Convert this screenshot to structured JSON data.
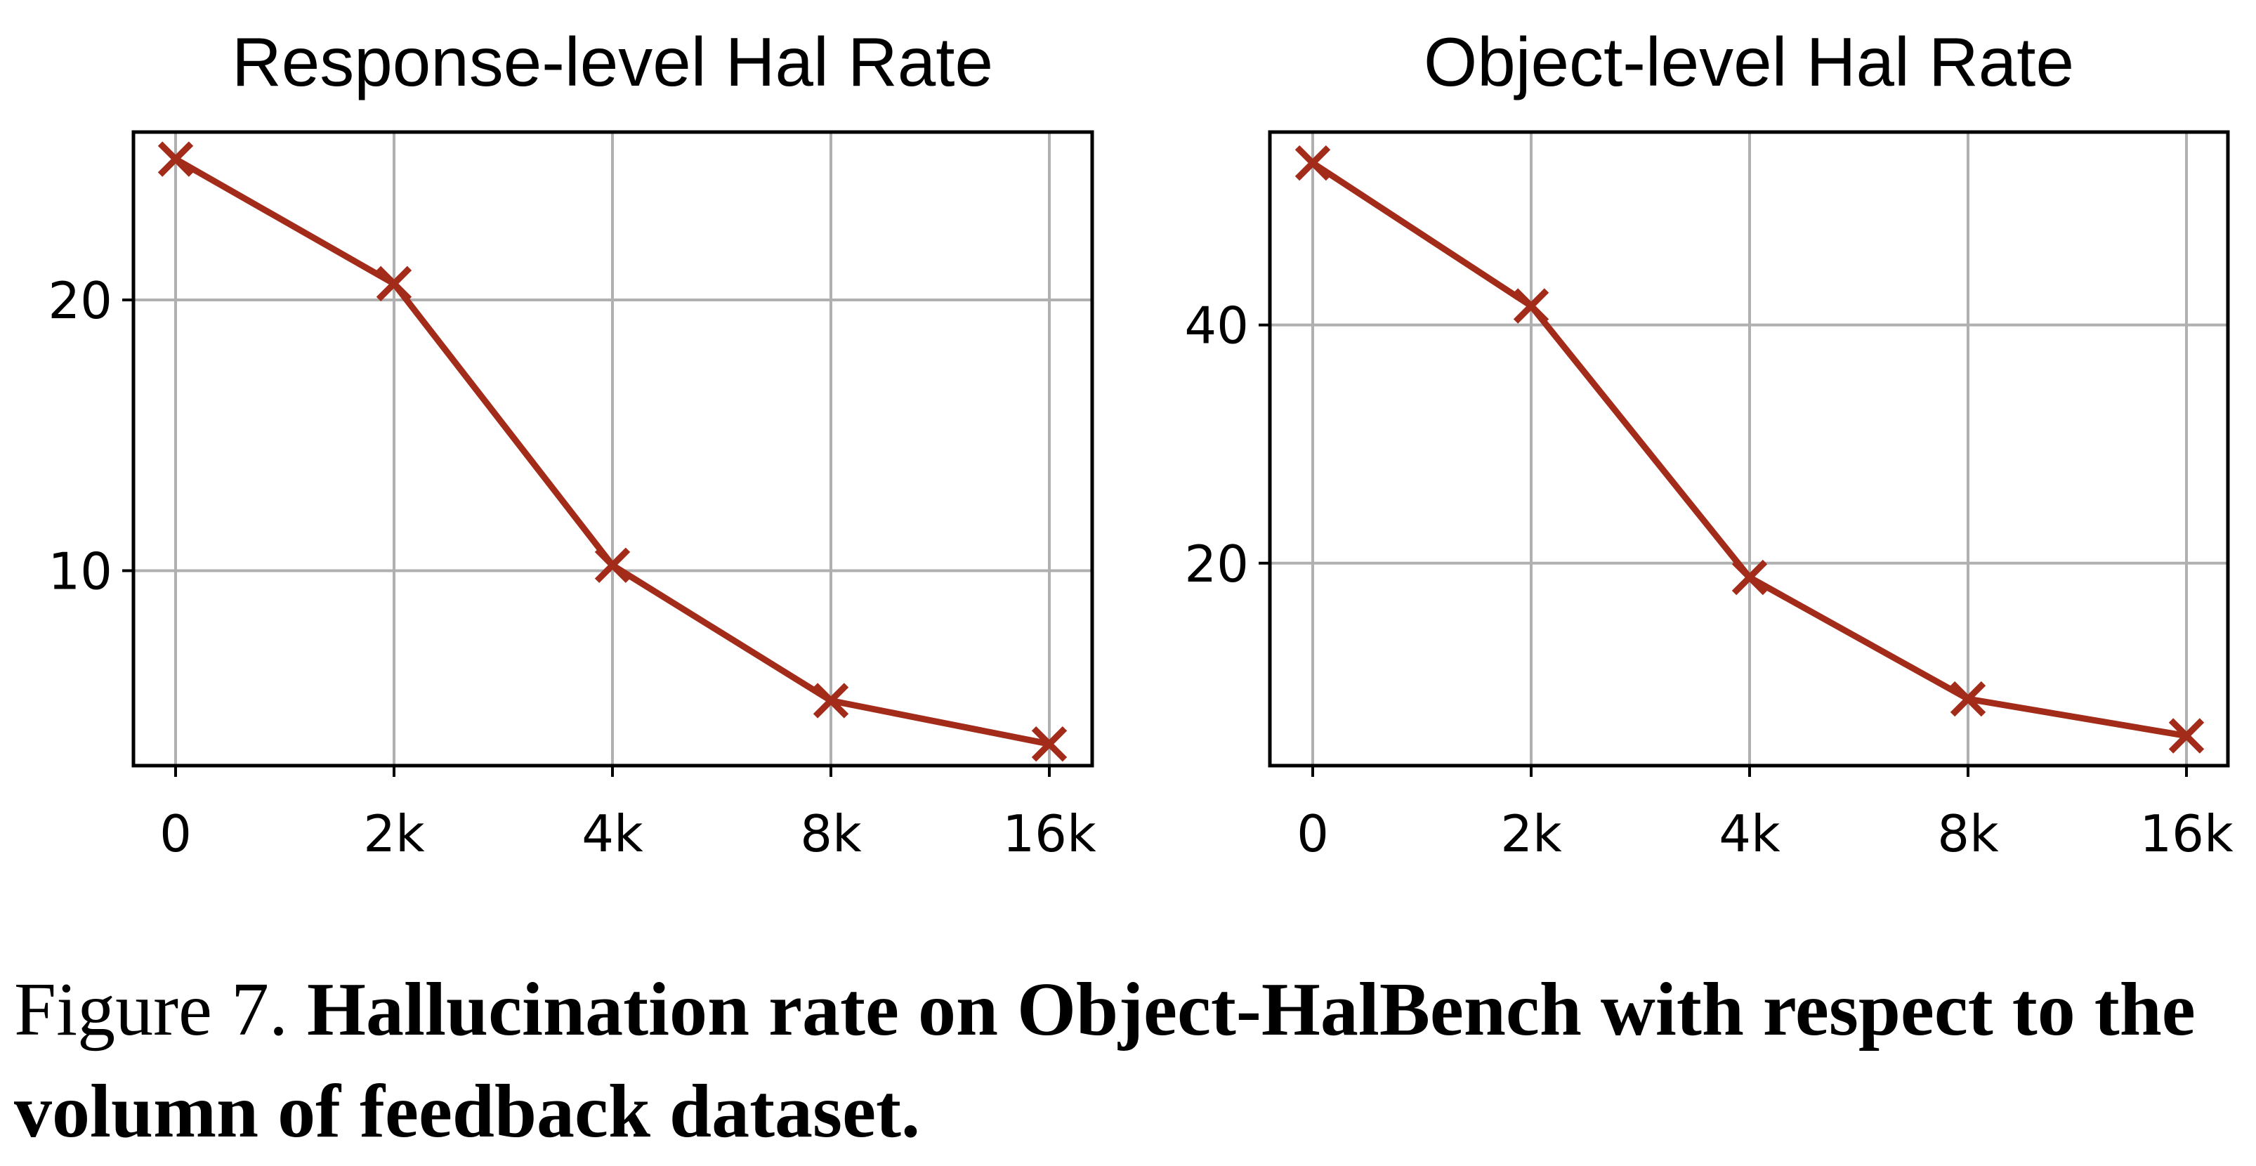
{
  "figure": {
    "caption_prefix": "Figure 7.",
    "caption_bold": "Hallucination rate on Object-HalBench with respect to the volumn of feedback dataset."
  },
  "colors": {
    "line": "#a32b1a",
    "grid": "#b0b0b0",
    "axes": "#000000"
  },
  "chart_data": [
    {
      "type": "line",
      "title": "Response-level Hal Rate",
      "categories": [
        "0",
        "2k",
        "4k",
        "8k",
        "16k"
      ],
      "values": [
        25.2,
        20.6,
        10.2,
        5.2,
        3.6
      ],
      "ylim": [
        2.8,
        26.2
      ],
      "yticks": [
        10,
        20
      ],
      "marker": "x",
      "grid": true
    },
    {
      "type": "line",
      "title": "Object-level Hal Rate",
      "categories": [
        "0",
        "2k",
        "4k",
        "8k",
        "16k"
      ],
      "values": [
        53.6,
        41.6,
        18.8,
        8.6,
        5.5
      ],
      "ylim": [
        3.0,
        56.2
      ],
      "yticks": [
        20,
        40
      ],
      "marker": "x",
      "grid": true
    }
  ]
}
